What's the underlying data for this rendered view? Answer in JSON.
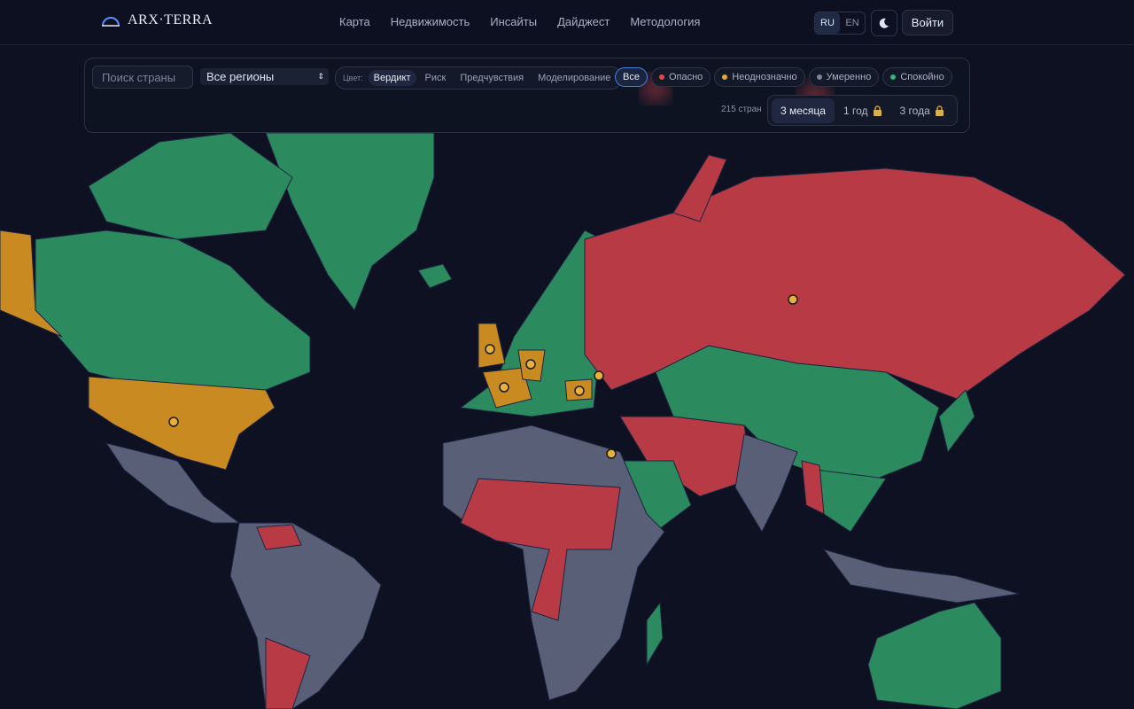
{
  "header": {
    "logo": "ARX·TERRA",
    "nav": [
      "Карта",
      "Недвижимость",
      "Инсайты",
      "Дайджест",
      "Методология"
    ],
    "languages": [
      "RU",
      "EN"
    ],
    "login": "Войти"
  },
  "controls": {
    "search_placeholder": "Поиск страны",
    "region_select": "Все регионы",
    "color_label": "Цвет:",
    "color_modes": [
      "Вердикт",
      "Риск",
      "Предчувствия",
      "Моделирование"
    ],
    "filters": [
      "Все",
      "Опасно",
      "Неоднозначно",
      "Умеренно",
      "Спокойно"
    ],
    "country_count": "215 стран",
    "periods": [
      "3 месяца",
      "1 год",
      "3 года"
    ]
  }
}
